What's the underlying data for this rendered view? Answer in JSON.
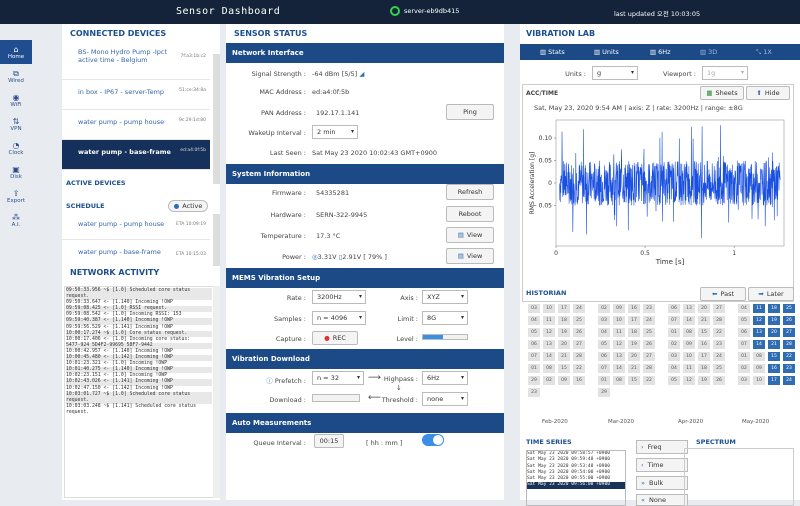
{
  "header": {
    "title": "Sensor Dashboard",
    "server": "server-eb9db415",
    "updated": "last updated 오전 10:03:05",
    "status_color": "#32d24a"
  },
  "nav": [
    {
      "label": "Home",
      "icon": "home-icon"
    },
    {
      "label": "Wired",
      "icon": "wired-icon"
    },
    {
      "label": "WiFi",
      "icon": "wifi-icon"
    },
    {
      "label": "VPN",
      "icon": "vpn-icon"
    },
    {
      "label": "Clock",
      "icon": "clock-icon"
    },
    {
      "label": "Disk",
      "icon": "disk-icon"
    },
    {
      "label": "Export",
      "icon": "export-icon"
    },
    {
      "label": "A.I.",
      "icon": "ai-icon"
    }
  ],
  "connected": {
    "title": "CONNECTED DEVICES",
    "devices": [
      {
        "name": "BS- Mono Hydro Pump -Ipct active time - Belgium",
        "id": "7f:a3:1b:c2"
      },
      {
        "name": "in box - IP67 - server-Temp",
        "id": "51:ce:34:8a"
      },
      {
        "name": "water pump - pump house",
        "id": "9c:29:1d:80"
      },
      {
        "name": "water pump - base-frame",
        "id": "ed:a4:0f:5b"
      }
    ]
  },
  "active_devices": "ACTIVE DEVICES",
  "schedule": {
    "title": "SCHEDULE",
    "button": "Active",
    "items": [
      {
        "name": "water pump - pump house",
        "id": "ETA 10:09:19"
      },
      {
        "name": "water pump - base-frame",
        "id": "ETA 10:15:03"
      }
    ]
  },
  "network_activity": {
    "title": "NETWORK ACTIVITY",
    "lines": [
      "09:50:33.956 ~$ [1.0] Scheduled core status request.",
      "09:50:33.647 <- [1.140] Incoming !OWP",
      "09:59:08.425 <- [1.0] RSSI request.",
      "09:59:08.542 <- [1.0] Incoming RSSI: 153",
      "09:59:40.387 <- [1.140] Incoming !OWP",
      "09:59:56.529 <- [1.141] Incoming !OWP",
      "10:00:17.274 ~$ [1.0] Core status request.",
      "10:00:17.406 <- [1.0] Incoming core status:",
      "5477-924 5D4F2-99695 58F7-9442",
      "10:00:42.957 <- [1.140] Incoming !OWP",
      "10:00:45.480 <- [1.142] Incoming !OWP",
      "10:01:23.321 <- [1.0] Incoming !OWP",
      "10:01:40.275 <- [1.140] Incoming !OWP",
      "10:02:23.151 <- [1.0] Incoming !OWP",
      "10:02:43.026 <- [1.141] Incoming !OWP",
      "10:02:47.150 <- [1.142] Incoming !OWP",
      "10:03:01.727 ~$ [1.0] Scheduled core status request.",
      "10:03:03.248 ~$ [1.141] Scheduled core status request."
    ]
  },
  "status": {
    "title": "SENSOR STATUS",
    "network": {
      "title": "Network Interface",
      "signal_label": "Signal Strength :",
      "signal": "-64 dBm",
      "signal_bars": "[5/5]",
      "mac_label": "MAC Address :",
      "mac": "ed:a4:0f:5b",
      "pan_label": "PAN Address :",
      "pan": "192.17.1.141",
      "ping": "Ping",
      "wake_label": "WakeUp Interval :",
      "wake": "2 min",
      "seen_label": "Last Seen :",
      "seen": "Sat May 23 2020 10:02:43 GMT+0900"
    },
    "info": {
      "title": "System Information",
      "fw_label": "Firmware :",
      "fw": "54335281",
      "refresh": "Refresh",
      "hw_label": "Hardware :",
      "hw": "SERN-322-9945",
      "reboot": "Reboot",
      "temp_label": "Temperature :",
      "temp": "17.3 °C",
      "view": "View",
      "power_label": "Power :",
      "v1": "3.31V",
      "v2": "2.91V",
      "pct": "[ 79% ]",
      "view2": "View"
    },
    "mems": {
      "title": "MEMS Vibration Setup",
      "rate_label": "Rate :",
      "rate": "3200Hz",
      "axis_label": "Axis :",
      "axis": "XYZ",
      "samples_label": "Samples :",
      "samples": "n = 4096",
      "limit_label": "Limit :",
      "limit": "8G",
      "capture_label": "Capture :",
      "rec": "REC",
      "level_label": "Level :",
      "level": 0.45
    },
    "download": {
      "title": "Vibration Download",
      "prefetch_label": "Prefetch :",
      "prefetch": "n = 32",
      "highpass_label": "Highpass :",
      "highpass": "6Hz",
      "download_label": "Download :",
      "threshold_label": "Threshold :",
      "threshold": "none"
    },
    "auto": {
      "title": "Auto Measurements",
      "queue_label": "Queue Interval :",
      "queue": "00:15",
      "queue_unit": "[ hh : mm ]"
    }
  },
  "lab": {
    "title": "VIBRATION LAB",
    "tabs": [
      "Stats",
      "Units",
      "6Hz",
      "3D",
      "1X"
    ],
    "units_label": "Units :",
    "units": "g",
    "viewport_label": "Viewport :",
    "viewport": "1g",
    "chart_title": "ACC/TIME",
    "sheets": "Sheets",
    "hide": "Hide",
    "caption": "Sat, May 23, 2020 9:54 AM | axis: Z | rate: 3200Hz | range: ±8G",
    "historian": "HISTORIAN",
    "past": "Past",
    "later": "Later",
    "months": [
      "Feb-2020",
      "Mar-2020",
      "Apr-2020",
      "May-2020"
    ],
    "timeseries": "TIME SERIES",
    "spectrum": "SPECTRUM",
    "ts_items": [
      "Sat May 23 2020 09:58:57 +0900",
      "Sat May 23 2020 09:59:48 +0900",
      "Sat May 23 2020 09:53:48 +0900",
      "Sat May 23 2020 09:54:00 +0900",
      "Sat May 23 2020 09:55:00 +0900",
      "Sat May 23 2020 09:56:00 +0900"
    ],
    "buttons": [
      "Freq",
      "Time",
      "Bulk",
      "None"
    ]
  },
  "chart_data": {
    "type": "line",
    "title": "",
    "xlabel": "Time [s]",
    "ylabel": "RMS Acceleration [g]",
    "xlim": [
      0,
      1.28
    ],
    "ylim": [
      -0.14,
      0.14
    ],
    "xticks": [
      0,
      0.5,
      1
    ],
    "yticks": [
      -0.05,
      0,
      0.05,
      0.1
    ],
    "series": [
      {
        "values": "noise z-axis vibration within about ±0.13 g, dense band ±0.05 g"
      }
    ]
  }
}
